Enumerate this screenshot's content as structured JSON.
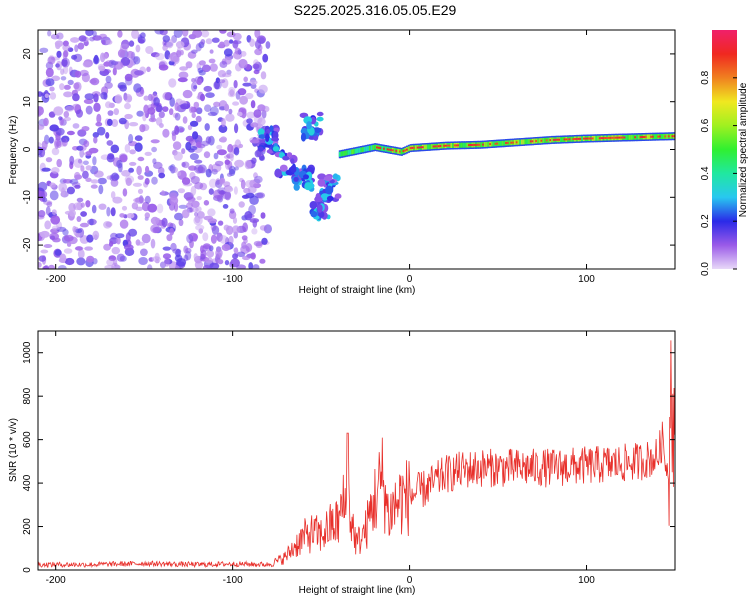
{
  "title": "S225.2025.316.05.05.E29",
  "chart_data": [
    {
      "type": "heatmap",
      "name": "spectrogram",
      "xlabel": "Height of straight line (km)",
      "ylabel": "Frequency (Hz)",
      "xlim": [
        -210,
        150
      ],
      "ylim": [
        -25,
        25
      ],
      "xticks": [
        -200,
        -100,
        0,
        100
      ],
      "xtick_labels": [
        "-200",
        "-100",
        "0",
        "100"
      ],
      "yticks": [
        -20,
        -10,
        0,
        10,
        20
      ],
      "ytick_labels": [
        "-20",
        "-10",
        "0",
        "10",
        "20"
      ],
      "colorbar": {
        "label": "Normalized spectral amplitude",
        "range": [
          0,
          1
        ],
        "ticks": [
          0,
          0.2,
          0.4,
          0.6,
          0.8
        ],
        "tick_labels": [
          "0.0",
          "0.2",
          "0.4",
          "0.6",
          "0.8"
        ]
      },
      "description_points": {
        "noise_region_x": [
          -210,
          -80
        ],
        "signal_track": [
          {
            "x": -40,
            "f": -1
          },
          {
            "x": -20,
            "f": 0.5
          },
          {
            "x": -5,
            "f": -0.5
          },
          {
            "x": 0,
            "f": 0.3
          },
          {
            "x": 20,
            "f": 0.8
          },
          {
            "x": 40,
            "f": 1.0
          },
          {
            "x": 60,
            "f": 1.5
          },
          {
            "x": 80,
            "f": 2.0
          },
          {
            "x": 100,
            "f": 2.3
          },
          {
            "x": 120,
            "f": 2.5
          },
          {
            "x": 150,
            "f": 2.8
          }
        ],
        "scatter_branch": [
          {
            "x": -80,
            "f": 2
          },
          {
            "x": -70,
            "f": -3
          },
          {
            "x": -60,
            "f": -6
          },
          {
            "x": -55,
            "f": 5
          },
          {
            "x": -50,
            "f": -12
          },
          {
            "x": -45,
            "f": -8
          }
        ]
      }
    },
    {
      "type": "line",
      "name": "snr",
      "xlabel": "Height of straight line (km)",
      "ylabel": "SNR (10 * v/v)",
      "xlim": [
        -210,
        150
      ],
      "ylim": [
        0,
        1100
      ],
      "xticks": [
        -200,
        -100,
        0,
        100
      ],
      "xtick_labels": [
        "-200",
        "-100",
        "0",
        "100"
      ],
      "yticks": [
        0,
        200,
        400,
        600,
        800,
        1000
      ],
      "ytick_labels": [
        "0",
        "200",
        "400",
        "600",
        "800",
        "1000"
      ],
      "series_color": "#e8302b",
      "series": [
        {
          "name": "SNR",
          "x": [
            -210,
            -180,
            -150,
            -120,
            -100,
            -80,
            -75,
            -70,
            -65,
            -60,
            -55,
            -50,
            -45,
            -40,
            -38,
            -36,
            -35,
            -34,
            -32,
            -30,
            -25,
            -20,
            -15,
            -12,
            -10,
            -5,
            0,
            10,
            20,
            30,
            40,
            60,
            80,
            100,
            120,
            130,
            140,
            143,
            146,
            148,
            150
          ],
          "y": [
            25,
            25,
            30,
            25,
            28,
            25,
            40,
            60,
            110,
            150,
            170,
            160,
            200,
            220,
            300,
            280,
            630,
            260,
            200,
            120,
            180,
            320,
            420,
            250,
            280,
            330,
            340,
            380,
            440,
            460,
            470,
            470,
            470,
            480,
            490,
            500,
            520,
            600,
            420,
            780,
            1100
          ]
        }
      ]
    }
  ],
  "colors": {
    "frame": "#000000",
    "background": "#ffffff",
    "snr_line": "#e8302b"
  }
}
